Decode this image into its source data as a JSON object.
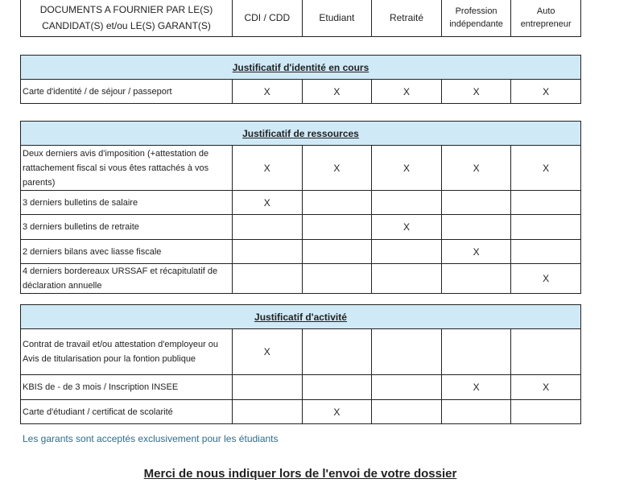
{
  "header": {
    "title": "DOCUMENTS A FOURNIER PAR LE(S) CANDIDAT(S) et/ou LE(S) GARANT(S)",
    "columns": [
      "CDI / CDD",
      "Etudiant",
      "Retraité",
      "Profession indépendante",
      "Auto entrepreneur"
    ]
  },
  "sections": [
    {
      "title": "Justificatif d'identité en cours",
      "rows": [
        {
          "label": "Carte d'identité / de séjour / passeport",
          "marks": [
            "X",
            "X",
            "X",
            "X",
            "X"
          ]
        }
      ]
    },
    {
      "title": "Justificatif de ressources",
      "rows": [
        {
          "label": "Deux derniers avis d'imposition (+attestation de rattachement fiscal si vous êtes rattachés à vos parents)",
          "marks": [
            "X",
            "X",
            "X",
            "X",
            "X"
          ]
        },
        {
          "label": "3 derniers bulletins de salaire",
          "marks": [
            "X",
            "",
            "",
            "",
            ""
          ]
        },
        {
          "label": "3 derniers bulletins de retraite",
          "marks": [
            "",
            "",
            "X",
            "",
            ""
          ]
        },
        {
          "label": "2 derniers bilans avec liasse fiscale",
          "marks": [
            "",
            "",
            "",
            "X",
            ""
          ]
        },
        {
          "label": "4 derniers bordereaux URSSAF et récapitulatif de déclaration annuelle",
          "marks": [
            "",
            "",
            "",
            "",
            "X"
          ]
        }
      ]
    },
    {
      "title": "Justificatif d'activité",
      "rows": [
        {
          "label": "Contrat de travail et/ou attestation d'employeur ou Avis de titularisation pour la fontion publique",
          "marks": [
            "X",
            "",
            "",
            "",
            ""
          ]
        },
        {
          "label": "KBIS de - de 3 mois / Inscription INSEE",
          "marks": [
            "",
            "",
            "",
            "X",
            "X"
          ]
        },
        {
          "label": "Carte d'étudiant / certificat de scolarité",
          "marks": [
            "",
            "X",
            "",
            "",
            ""
          ]
        }
      ]
    }
  ],
  "note": "Les garants sont acceptés exclusivement pour les étudiants",
  "footer": "Merci de nous indiquer lors de l'envoi de votre dossier"
}
